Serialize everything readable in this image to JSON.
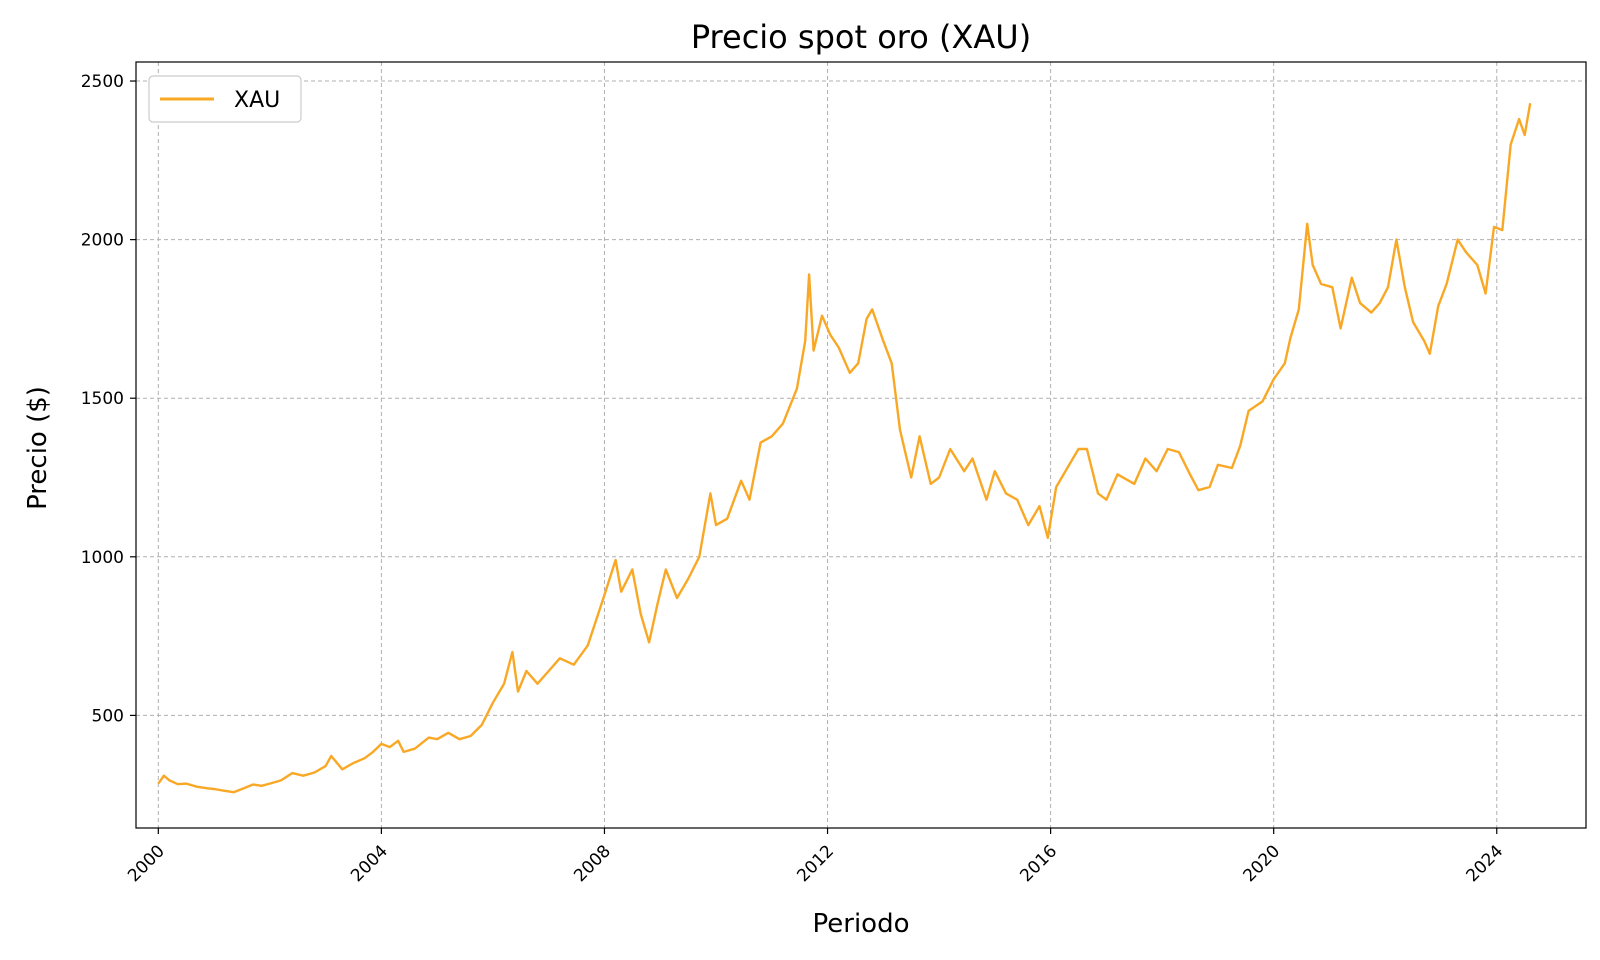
{
  "chart_data": {
    "type": "line",
    "title": "Precio spot oro (XAU)",
    "xlabel": "Periodo",
    "ylabel": "Precio ($)",
    "xlim": [
      1999.6,
      2025.6
    ],
    "ylim": [
      145,
      2560
    ],
    "x_ticks": [
      {
        "label": "2000",
        "value": 2000
      },
      {
        "label": "2004",
        "value": 2004
      },
      {
        "label": "2008",
        "value": 2008
      },
      {
        "label": "2012",
        "value": 2012
      },
      {
        "label": "2016",
        "value": 2016
      },
      {
        "label": "2020",
        "value": 2020
      },
      {
        "label": "2024",
        "value": 2024
      }
    ],
    "y_ticks": [
      {
        "label": "500",
        "value": 500
      },
      {
        "label": "1000",
        "value": 1000
      },
      {
        "label": "1500",
        "value": 1500
      },
      {
        "label": "2000",
        "value": 2000
      },
      {
        "label": "2500",
        "value": 2500
      }
    ],
    "grid": true,
    "legend": {
      "position": "top-left"
    },
    "series": [
      {
        "name": "XAU",
        "color": "#f9a825",
        "points": [
          [
            2000.0,
            285
          ],
          [
            2000.1,
            310
          ],
          [
            2000.2,
            295
          ],
          [
            2000.35,
            283
          ],
          [
            2000.5,
            285
          ],
          [
            2000.7,
            275
          ],
          [
            2000.9,
            270
          ],
          [
            2001.0,
            268
          ],
          [
            2001.2,
            262
          ],
          [
            2001.35,
            258
          ],
          [
            2001.5,
            268
          ],
          [
            2001.7,
            282
          ],
          [
            2001.85,
            278
          ],
          [
            2002.0,
            285
          ],
          [
            2002.2,
            295
          ],
          [
            2002.4,
            318
          ],
          [
            2002.6,
            310
          ],
          [
            2002.8,
            320
          ],
          [
            2003.0,
            340
          ],
          [
            2003.1,
            372
          ],
          [
            2003.3,
            330
          ],
          [
            2003.5,
            350
          ],
          [
            2003.7,
            365
          ],
          [
            2003.85,
            385
          ],
          [
            2004.0,
            410
          ],
          [
            2004.15,
            400
          ],
          [
            2004.3,
            420
          ],
          [
            2004.4,
            385
          ],
          [
            2004.6,
            395
          ],
          [
            2004.85,
            430
          ],
          [
            2005.0,
            425
          ],
          [
            2005.2,
            445
          ],
          [
            2005.4,
            425
          ],
          [
            2005.6,
            435
          ],
          [
            2005.8,
            470
          ],
          [
            2006.0,
            540
          ],
          [
            2006.2,
            600
          ],
          [
            2006.35,
            700
          ],
          [
            2006.45,
            575
          ],
          [
            2006.6,
            640
          ],
          [
            2006.8,
            600
          ],
          [
            2007.0,
            640
          ],
          [
            2007.2,
            680
          ],
          [
            2007.45,
            660
          ],
          [
            2007.7,
            720
          ],
          [
            2007.85,
            800
          ],
          [
            2008.0,
            880
          ],
          [
            2008.2,
            990
          ],
          [
            2008.3,
            890
          ],
          [
            2008.5,
            960
          ],
          [
            2008.65,
            820
          ],
          [
            2008.8,
            730
          ],
          [
            2008.95,
            850
          ],
          [
            2009.1,
            960
          ],
          [
            2009.3,
            870
          ],
          [
            2009.5,
            930
          ],
          [
            2009.7,
            1000
          ],
          [
            2009.9,
            1200
          ],
          [
            2010.0,
            1100
          ],
          [
            2010.2,
            1120
          ],
          [
            2010.45,
            1240
          ],
          [
            2010.6,
            1180
          ],
          [
            2010.8,
            1360
          ],
          [
            2011.0,
            1380
          ],
          [
            2011.2,
            1420
          ],
          [
            2011.45,
            1530
          ],
          [
            2011.6,
            1680
          ],
          [
            2011.67,
            1890
          ],
          [
            2011.75,
            1650
          ],
          [
            2011.9,
            1760
          ],
          [
            2012.05,
            1700
          ],
          [
            2012.2,
            1660
          ],
          [
            2012.4,
            1580
          ],
          [
            2012.55,
            1610
          ],
          [
            2012.7,
            1750
          ],
          [
            2012.8,
            1780
          ],
          [
            2013.0,
            1680
          ],
          [
            2013.15,
            1610
          ],
          [
            2013.3,
            1400
          ],
          [
            2013.5,
            1250
          ],
          [
            2013.65,
            1380
          ],
          [
            2013.85,
            1230
          ],
          [
            2014.0,
            1250
          ],
          [
            2014.2,
            1340
          ],
          [
            2014.45,
            1270
          ],
          [
            2014.6,
            1310
          ],
          [
            2014.85,
            1180
          ],
          [
            2015.0,
            1270
          ],
          [
            2015.2,
            1200
          ],
          [
            2015.4,
            1180
          ],
          [
            2015.6,
            1100
          ],
          [
            2015.8,
            1160
          ],
          [
            2015.95,
            1060
          ],
          [
            2016.1,
            1220
          ],
          [
            2016.3,
            1280
          ],
          [
            2016.5,
            1340
          ],
          [
            2016.65,
            1340
          ],
          [
            2016.85,
            1200
          ],
          [
            2017.0,
            1180
          ],
          [
            2017.2,
            1260
          ],
          [
            2017.5,
            1230
          ],
          [
            2017.7,
            1310
          ],
          [
            2017.9,
            1270
          ],
          [
            2018.1,
            1340
          ],
          [
            2018.3,
            1330
          ],
          [
            2018.5,
            1260
          ],
          [
            2018.65,
            1210
          ],
          [
            2018.85,
            1220
          ],
          [
            2019.0,
            1290
          ],
          [
            2019.25,
            1280
          ],
          [
            2019.4,
            1350
          ],
          [
            2019.55,
            1460
          ],
          [
            2019.8,
            1490
          ],
          [
            2020.0,
            1560
          ],
          [
            2020.2,
            1610
          ],
          [
            2020.3,
            1690
          ],
          [
            2020.45,
            1780
          ],
          [
            2020.6,
            2050
          ],
          [
            2020.7,
            1920
          ],
          [
            2020.85,
            1860
          ],
          [
            2021.05,
            1850
          ],
          [
            2021.2,
            1720
          ],
          [
            2021.4,
            1880
          ],
          [
            2021.55,
            1800
          ],
          [
            2021.75,
            1770
          ],
          [
            2021.9,
            1800
          ],
          [
            2022.05,
            1850
          ],
          [
            2022.2,
            2000
          ],
          [
            2022.35,
            1850
          ],
          [
            2022.5,
            1740
          ],
          [
            2022.7,
            1680
          ],
          [
            2022.8,
            1640
          ],
          [
            2022.95,
            1790
          ],
          [
            2023.1,
            1860
          ],
          [
            2023.3,
            2000
          ],
          [
            2023.45,
            1960
          ],
          [
            2023.65,
            1920
          ],
          [
            2023.8,
            1830
          ],
          [
            2023.95,
            2040
          ],
          [
            2024.1,
            2030
          ],
          [
            2024.25,
            2300
          ],
          [
            2024.4,
            2380
          ],
          [
            2024.5,
            2330
          ],
          [
            2024.6,
            2430
          ]
        ]
      }
    ]
  }
}
